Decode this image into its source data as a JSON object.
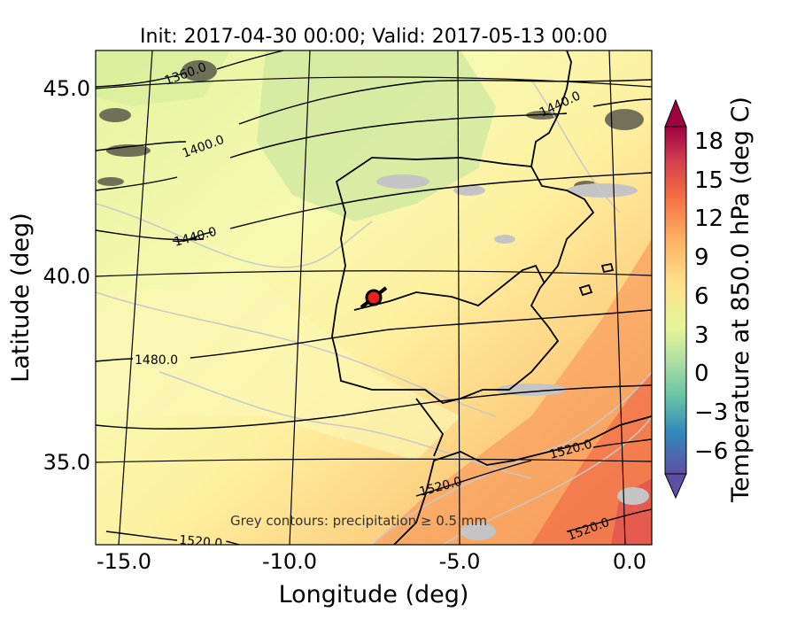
{
  "figure": {
    "title": "Init: 2017-04-30 00:00; Valid: 2017-05-13 00:00",
    "xlabel": "Longitude (deg)",
    "ylabel": "Latitude (deg)",
    "annotation": "Grey contours: precipitation ≥ 0.5 mm",
    "x_ticks": [
      "-15.0",
      "-10.0",
      "-5.0",
      "0.0"
    ],
    "y_ticks": [
      "45.0",
      "40.0",
      "35.0"
    ]
  },
  "chart_data": {
    "type": "heatmap",
    "variable": "Temperature at 850.0 hPa (deg C)",
    "xlabel": "Longitude (deg)",
    "ylabel": "Latitude (deg)",
    "xlim": [
      -16,
      0
    ],
    "ylim": [
      32.5,
      46
    ],
    "colorbar": {
      "label": "Temperature at 850.0 hPa (deg C)",
      "ticks": [
        "−6",
        "−3",
        "0",
        "3",
        "6",
        "9",
        "12",
        "15",
        "18"
      ],
      "range": [
        -8,
        20
      ],
      "extend": "both"
    },
    "height_contours": [
      "1360.0",
      "1400.0",
      "1440.0",
      "1440.0",
      "1480.0",
      "1520.0",
      "1520.0",
      "1520.0",
      "1520.0"
    ],
    "marker": {
      "lon": -7.7,
      "lat": 39.3,
      "color": "#e8221b"
    }
  }
}
